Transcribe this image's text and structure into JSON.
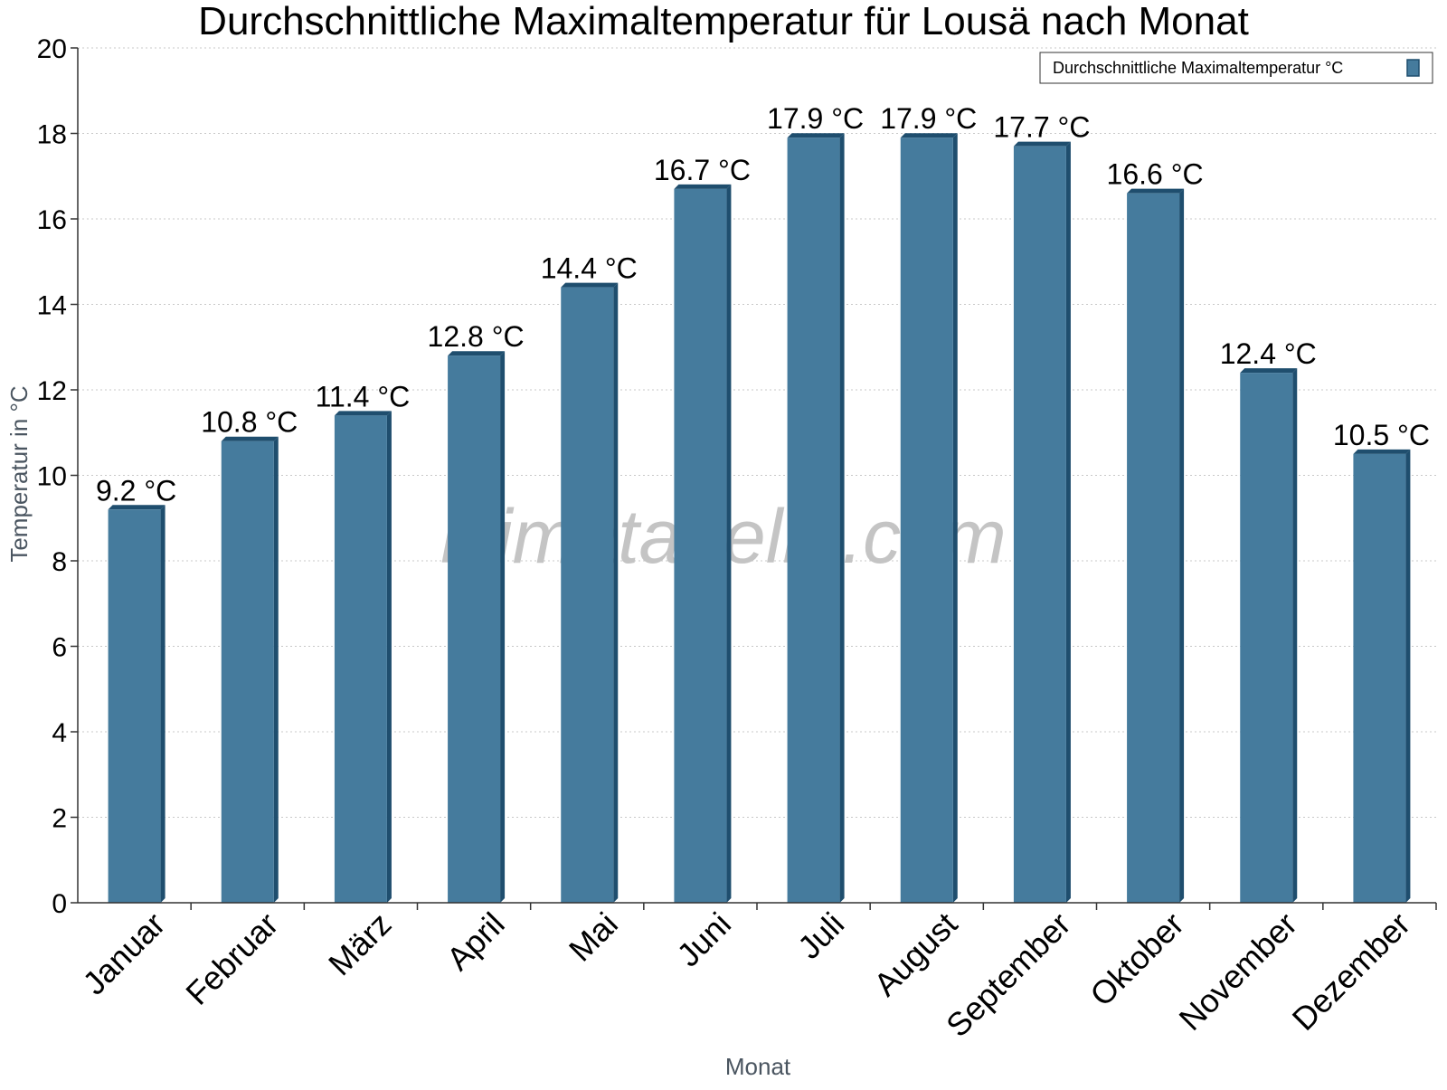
{
  "chart_data": {
    "type": "bar",
    "title": "Durchschnittliche Maximaltemperatur für Lousä nach Monat",
    "xlabel": "Monat",
    "ylabel": "Temperatur in °C",
    "categories": [
      "Januar",
      "Februar",
      "März",
      "April",
      "Mai",
      "Juni",
      "Juli",
      "August",
      "September",
      "Oktober",
      "November",
      "Dezember"
    ],
    "series": [
      {
        "name": "Durchschnittliche Maximaltemperatur °C",
        "values": [
          9.2,
          10.8,
          11.4,
          12.8,
          14.4,
          16.7,
          17.9,
          17.9,
          17.7,
          16.6,
          12.4,
          10.5
        ],
        "labels": [
          "9.2 °C",
          "10.8 °C",
          "11.4 °C",
          "12.8 °C",
          "14.4 °C",
          "16.7 °C",
          "17.9 °C",
          "17.9 °C",
          "17.7 °C",
          "16.6 °C",
          "12.4 °C",
          "10.5 °C"
        ],
        "color": "#457b9d",
        "side_color": "#1f4e6e"
      }
    ],
    "ylim": [
      0,
      20
    ],
    "yticks": [
      0,
      2,
      4,
      6,
      8,
      10,
      12,
      14,
      16,
      18,
      20
    ],
    "grid": true,
    "legend_position": "top-right",
    "watermark": "klimatabelle.com"
  }
}
